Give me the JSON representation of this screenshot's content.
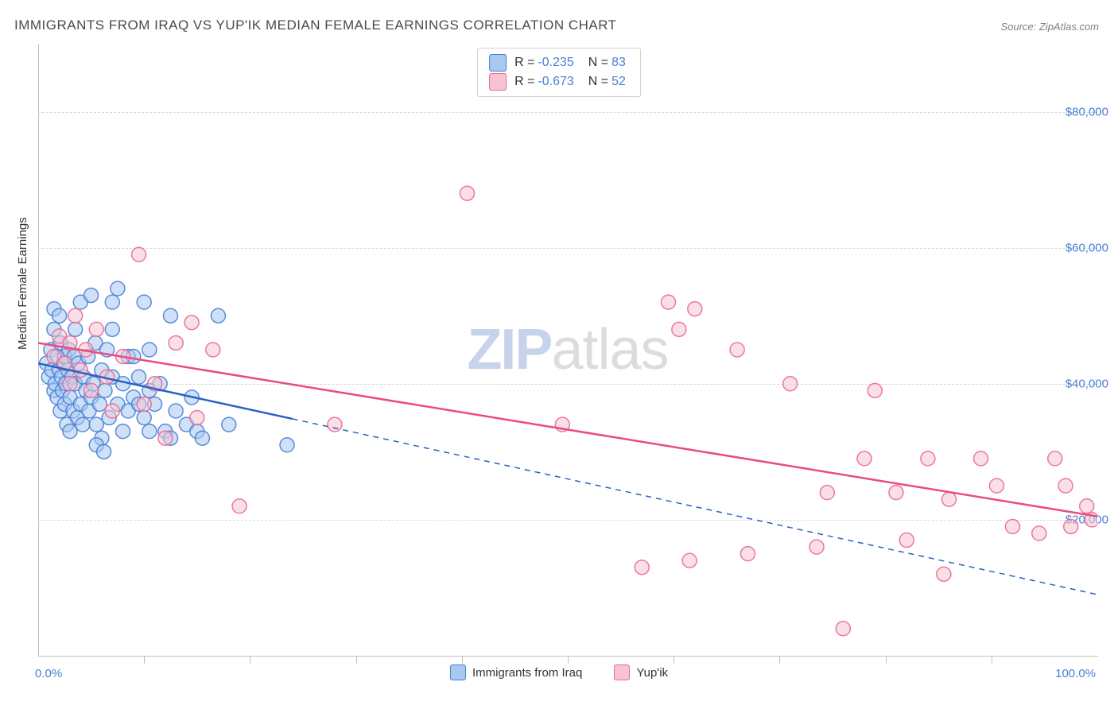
{
  "title": "IMMIGRANTS FROM IRAQ VS YUP'IK MEDIAN FEMALE EARNINGS CORRELATION CHART",
  "source": "Source: ZipAtlas.com",
  "watermark": {
    "zip": "ZIP",
    "atlas": "atlas"
  },
  "chart": {
    "type": "scatter",
    "title_fontsize": 17,
    "title_color": "#4a4a4a",
    "background_color": "#ffffff",
    "grid_color": "#d8d8d8",
    "axis_line_color": "#bfbfbf",
    "label_fontsize": 15,
    "value_color": "#4a7fd6",
    "ylabel": "Median Female Earnings",
    "xlim": [
      0,
      100
    ],
    "ylim": [
      0,
      90000
    ],
    "x_start_label": "0.0%",
    "x_end_label": "100.0%",
    "y_ticks": [
      20000,
      40000,
      60000,
      80000
    ],
    "y_tick_labels": [
      "$20,000",
      "$40,000",
      "$60,000",
      "$80,000"
    ],
    "x_tick_step": 10,
    "series": [
      {
        "name": "Immigrants from Iraq",
        "fill_color": "#a8c8f0",
        "stroke_color": "#4a7fd6",
        "line_color": "#2b61c4",
        "marker_radius": 9,
        "marker_opacity": 0.55,
        "r_value": "-0.235",
        "n_value": "83",
        "trend": {
          "x1": 0,
          "y1": 43000,
          "x2": 100,
          "y2": 9000,
          "solid_until_x": 24
        },
        "points": [
          [
            0.8,
            43000
          ],
          [
            1.0,
            41000
          ],
          [
            1.2,
            45000
          ],
          [
            1.3,
            42000
          ],
          [
            1.5,
            51000
          ],
          [
            1.5,
            39000
          ],
          [
            1.5,
            48000
          ],
          [
            1.6,
            40000
          ],
          [
            1.8,
            44000
          ],
          [
            1.8,
            38000
          ],
          [
            2.0,
            42000
          ],
          [
            2.0,
            50000
          ],
          [
            2.1,
            46000
          ],
          [
            2.1,
            36000
          ],
          [
            2.2,
            41000
          ],
          [
            2.3,
            39000
          ],
          [
            2.4,
            43000
          ],
          [
            2.5,
            37000
          ],
          [
            2.5,
            44000
          ],
          [
            2.6,
            40000
          ],
          [
            2.7,
            34000
          ],
          [
            2.8,
            42000
          ],
          [
            2.9,
            45000
          ],
          [
            3.0,
            38000
          ],
          [
            3.0,
            33000
          ],
          [
            3.2,
            41000
          ],
          [
            3.3,
            36000
          ],
          [
            3.4,
            44000
          ],
          [
            3.5,
            40000
          ],
          [
            3.5,
            48000
          ],
          [
            3.7,
            35000
          ],
          [
            3.8,
            43000
          ],
          [
            4.0,
            37000
          ],
          [
            4.0,
            52000
          ],
          [
            4.2,
            34000
          ],
          [
            4.3,
            41000
          ],
          [
            4.5,
            39000
          ],
          [
            4.7,
            44000
          ],
          [
            4.8,
            36000
          ],
          [
            5.0,
            38000
          ],
          [
            5.0,
            53000
          ],
          [
            5.2,
            40000
          ],
          [
            5.4,
            46000
          ],
          [
            5.5,
            34000
          ],
          [
            5.8,
            37000
          ],
          [
            6.0,
            42000
          ],
          [
            6.0,
            32000
          ],
          [
            6.3,
            39000
          ],
          [
            6.5,
            45000
          ],
          [
            6.7,
            35000
          ],
          [
            7.0,
            41000
          ],
          [
            7.0,
            48000
          ],
          [
            7.0,
            52000
          ],
          [
            7.5,
            37000
          ],
          [
            7.5,
            54000
          ],
          [
            8.0,
            40000
          ],
          [
            8.0,
            33000
          ],
          [
            8.5,
            36000
          ],
          [
            8.5,
            44000
          ],
          [
            9.0,
            38000
          ],
          [
            9.0,
            44000
          ],
          [
            9.5,
            41000
          ],
          [
            10.0,
            35000
          ],
          [
            10.0,
            52000
          ],
          [
            10.5,
            39000
          ],
          [
            10.5,
            33000
          ],
          [
            10.5,
            45000
          ],
          [
            11.0,
            37000
          ],
          [
            11.5,
            40000
          ],
          [
            12.0,
            33000
          ],
          [
            12.5,
            32000
          ],
          [
            12.5,
            50000
          ],
          [
            13.0,
            36000
          ],
          [
            14.0,
            34000
          ],
          [
            14.5,
            38000
          ],
          [
            15.0,
            33000
          ],
          [
            15.5,
            32000
          ],
          [
            17.0,
            50000
          ],
          [
            18.0,
            34000
          ],
          [
            5.5,
            31000
          ],
          [
            6.2,
            30000
          ],
          [
            23.5,
            31000
          ],
          [
            9.5,
            37000
          ]
        ]
      },
      {
        "name": "Yup'ik",
        "fill_color": "#f6c4d1",
        "stroke_color": "#e96a94",
        "line_color": "#e94c7e",
        "marker_radius": 9,
        "marker_opacity": 0.55,
        "r_value": "-0.673",
        "n_value": "52",
        "trend": {
          "x1": 0,
          "y1": 46000,
          "x2": 100,
          "y2": 20500,
          "solid_until_x": 100
        },
        "points": [
          [
            1.5,
            44000
          ],
          [
            2.0,
            47000
          ],
          [
            2.5,
            43000
          ],
          [
            3.0,
            46000
          ],
          [
            3.0,
            40000
          ],
          [
            3.5,
            50000
          ],
          [
            4.0,
            42000
          ],
          [
            4.5,
            45000
          ],
          [
            5.0,
            39000
          ],
          [
            5.5,
            48000
          ],
          [
            6.5,
            41000
          ],
          [
            7.0,
            36000
          ],
          [
            8.0,
            44000
          ],
          [
            9.5,
            59000
          ],
          [
            10.0,
            37000
          ],
          [
            11.0,
            40000
          ],
          [
            12.0,
            32000
          ],
          [
            13.0,
            46000
          ],
          [
            14.5,
            49000
          ],
          [
            15.0,
            35000
          ],
          [
            16.5,
            45000
          ],
          [
            19.0,
            22000
          ],
          [
            28.0,
            34000
          ],
          [
            40.5,
            68000
          ],
          [
            49.5,
            34000
          ],
          [
            57.0,
            13000
          ],
          [
            59.5,
            52000
          ],
          [
            60.5,
            48000
          ],
          [
            61.5,
            14000
          ],
          [
            62.0,
            51000
          ],
          [
            66.0,
            45000
          ],
          [
            67.0,
            15000
          ],
          [
            71.0,
            40000
          ],
          [
            73.5,
            16000
          ],
          [
            74.5,
            24000
          ],
          [
            76.0,
            4000
          ],
          [
            78.0,
            29000
          ],
          [
            79.0,
            39000
          ],
          [
            81.0,
            24000
          ],
          [
            82.0,
            17000
          ],
          [
            84.0,
            29000
          ],
          [
            85.5,
            12000
          ],
          [
            86.0,
            23000
          ],
          [
            89.0,
            29000
          ],
          [
            90.5,
            25000
          ],
          [
            92.0,
            19000
          ],
          [
            94.5,
            18000
          ],
          [
            96.0,
            29000
          ],
          [
            97.0,
            25000
          ],
          [
            97.5,
            19000
          ],
          [
            99.0,
            22000
          ],
          [
            99.5,
            20000
          ]
        ]
      }
    ]
  }
}
